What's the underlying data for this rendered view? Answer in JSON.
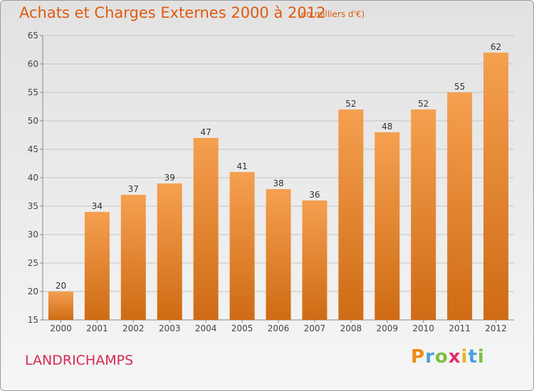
{
  "header": {
    "title": "Achats et Charges Externes 2000 à 2012",
    "subtitle": "(en milliers d'€)"
  },
  "footer": {
    "commune": "LANDRICHAMPS",
    "logo_text": "Proxiti"
  },
  "colors": {
    "bar_top": "#f5a050",
    "bar_bottom": "#cf6b14",
    "title": "#e05a10",
    "commune": "#d42a55",
    "grid": "#c4c4c4"
  },
  "chart_data": {
    "type": "bar",
    "title": "Achats et Charges Externes 2000 à 2012",
    "subtitle": "(en milliers d'€)",
    "xlabel": "",
    "ylabel": "",
    "categories": [
      "2000",
      "2001",
      "2002",
      "2003",
      "2004",
      "2005",
      "2006",
      "2007",
      "2008",
      "2009",
      "2010",
      "2011",
      "2012"
    ],
    "values": [
      20,
      34,
      37,
      39,
      47,
      41,
      38,
      36,
      52,
      48,
      52,
      55,
      62
    ],
    "ylim": [
      15,
      65
    ],
    "yticks": [
      15,
      20,
      25,
      30,
      35,
      40,
      45,
      50,
      55,
      60,
      65
    ],
    "grid": true,
    "data_labels": true
  }
}
